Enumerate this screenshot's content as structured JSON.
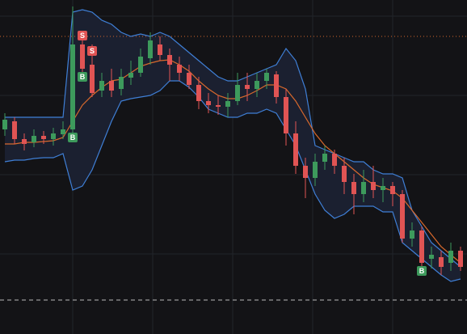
{
  "chart_data": {
    "type": "candlestick",
    "ylim": [
      0,
      413
    ],
    "open": [
      253,
      263,
      241,
      237,
      245,
      241,
      247,
      253,
      358,
      333,
      301,
      313,
      303,
      317,
      323,
      341,
      358,
      345,
      333,
      323,
      308,
      288,
      283,
      281,
      288,
      308,
      303,
      313,
      321,
      293,
      248,
      208,
      193,
      213,
      223,
      208,
      188,
      173,
      188,
      178,
      183,
      173,
      118,
      128,
      93,
      95,
      88,
      103
    ],
    "high": [
      273,
      268,
      248,
      253,
      251,
      255,
      263,
      405,
      373,
      358,
      323,
      328,
      328,
      338,
      353,
      373,
      368,
      353,
      343,
      333,
      318,
      298,
      295,
      298,
      323,
      323,
      323,
      328,
      325,
      303,
      263,
      218,
      223,
      233,
      228,
      218,
      198,
      203,
      208,
      193,
      188,
      178,
      138,
      133,
      108,
      103,
      113,
      108
    ],
    "low": [
      245,
      235,
      227,
      231,
      235,
      233,
      241,
      248,
      318,
      293,
      293,
      293,
      295,
      308,
      318,
      333,
      338,
      313,
      313,
      303,
      278,
      273,
      271,
      268,
      283,
      288,
      293,
      303,
      285,
      233,
      198,
      168,
      183,
      203,
      198,
      173,
      148,
      163,
      168,
      163,
      158,
      113,
      108,
      78,
      81,
      73,
      78,
      78
    ],
    "close": [
      265,
      241,
      235,
      245,
      241,
      248,
      253,
      358,
      328,
      298,
      313,
      301,
      318,
      323,
      343,
      363,
      345,
      333,
      323,
      308,
      288,
      283,
      281,
      288,
      308,
      303,
      313,
      323,
      293,
      248,
      208,
      193,
      213,
      223,
      208,
      188,
      173,
      188,
      178,
      183,
      173,
      118,
      128,
      88,
      98,
      83,
      103,
      83
    ],
    "up_color": "#3d9a5c",
    "down_color": "#e05454",
    "bands": {
      "upper": [
        268,
        268,
        268,
        268,
        268,
        268,
        268,
        398,
        401,
        398,
        388,
        383,
        373,
        368,
        371,
        368,
        373,
        368,
        358,
        348,
        338,
        328,
        318,
        313,
        313,
        318,
        323,
        328,
        333,
        353,
        338,
        303,
        233,
        228,
        223,
        218,
        213,
        213,
        203,
        198,
        198,
        193,
        153,
        133,
        113,
        103,
        93,
        83
      ],
      "middle": [
        235,
        235,
        237,
        237,
        238,
        239,
        243,
        263,
        283,
        295,
        305,
        313,
        315,
        323,
        331,
        335,
        338,
        339,
        333,
        325,
        313,
        303,
        295,
        291,
        291,
        295,
        301,
        308,
        308,
        303,
        288,
        268,
        248,
        233,
        223,
        213,
        203,
        193,
        185,
        181,
        177,
        168,
        153,
        138,
        123,
        108,
        98,
        88
      ],
      "lower": [
        213,
        215,
        215,
        217,
        218,
        218,
        223,
        178,
        183,
        203,
        233,
        263,
        288,
        291,
        293,
        295,
        301,
        313,
        313,
        305,
        293,
        278,
        273,
        268,
        268,
        273,
        273,
        278,
        273,
        253,
        233,
        203,
        173,
        153,
        143,
        148,
        158,
        158,
        158,
        151,
        151,
        113,
        103,
        93,
        83,
        73,
        65,
        68
      ],
      "band_color": "#3f7fd6",
      "middle_color": "#d9692c",
      "fill": "#1b2030"
    },
    "sell_signals": [
      null,
      null,
      null,
      null,
      null,
      null,
      null,
      null,
      "S",
      "S",
      null,
      null,
      null,
      null,
      null,
      null,
      null,
      null,
      null,
      null,
      null,
      null,
      null,
      null,
      null,
      null,
      null,
      null,
      null,
      null,
      null,
      null,
      null,
      null,
      null,
      null,
      null,
      null,
      null,
      null,
      null,
      null,
      null,
      null,
      null,
      null,
      null,
      null
    ],
    "buy_signals": [
      null,
      null,
      null,
      null,
      null,
      null,
      null,
      "B",
      "B",
      null,
      null,
      null,
      null,
      null,
      null,
      null,
      null,
      null,
      null,
      null,
      null,
      null,
      null,
      null,
      null,
      null,
      null,
      null,
      null,
      null,
      null,
      null,
      null,
      null,
      null,
      null,
      null,
      null,
      null,
      null,
      null,
      null,
      null,
      "B",
      null,
      null,
      null,
      null
    ],
    "hlines": [
      {
        "value": 368,
        "color": "#d0642c",
        "dash": "1 3"
      },
      {
        "value": 42,
        "color": "#bbbbbb",
        "dash": "5 4"
      }
    ]
  }
}
